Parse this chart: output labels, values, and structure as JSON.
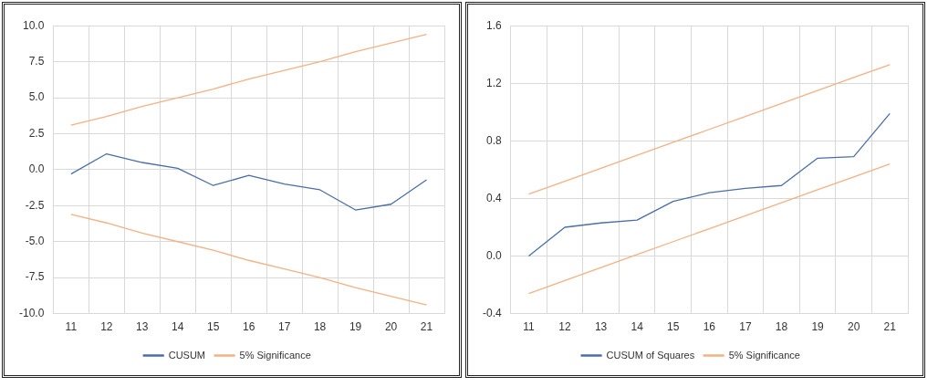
{
  "chart_data": [
    {
      "type": "line",
      "categories": [
        "11",
        "12",
        "13",
        "14",
        "15",
        "16",
        "17",
        "18",
        "19",
        "20",
        "21"
      ],
      "series": [
        {
          "name": "CUSUM",
          "color": "#4a6ea8",
          "values": [
            -0.3,
            1.1,
            0.5,
            0.1,
            -1.1,
            -0.4,
            -1.0,
            -1.4,
            -2.8,
            -2.4,
            -0.7
          ]
        },
        {
          "name": "5% Significance",
          "color": "#f4b183",
          "values": [
            3.1,
            3.7,
            4.4,
            5.0,
            5.6,
            6.3,
            6.9,
            7.5,
            8.2,
            8.8,
            9.4
          ]
        },
        {
          "color": "#f4b183",
          "values": [
            -3.1,
            -3.7,
            -4.4,
            -5.0,
            -5.6,
            -6.3,
            -6.9,
            -7.5,
            -8.2,
            -8.8,
            -9.4
          ]
        }
      ],
      "ylim": [
        -10,
        10
      ],
      "yticks": [
        {
          "value": -10,
          "label": "-10.0"
        },
        {
          "value": -7.5,
          "label": "-7.5"
        },
        {
          "value": -5,
          "label": "-5.0"
        },
        {
          "value": -2.5,
          "label": "-2.5"
        },
        {
          "value": 0,
          "label": "0.0"
        },
        {
          "value": 2.5,
          "label": "2.5"
        },
        {
          "value": 5,
          "label": "5.0"
        },
        {
          "value": 7.5,
          "label": "7.5"
        },
        {
          "value": 10,
          "label": "10.0"
        }
      ],
      "grid": true,
      "legend": "bottom",
      "marker": "none",
      "line_style": "solid"
    },
    {
      "type": "line",
      "categories": [
        "11",
        "12",
        "13",
        "14",
        "15",
        "16",
        "17",
        "18",
        "19",
        "20",
        "21"
      ],
      "series": [
        {
          "name": "CUSUM of Squares",
          "color": "#4a6ea8",
          "values": [
            0,
            0.2,
            0.23,
            0.25,
            0.38,
            0.44,
            0.47,
            0.49,
            0.68,
            0.69,
            0.99
          ]
        },
        {
          "name": "5% Significance",
          "color": "#f4b183",
          "values": [
            0.43,
            0.52,
            0.61,
            0.7,
            0.79,
            0.88,
            0.97,
            1.06,
            1.15,
            1.24,
            1.33
          ]
        },
        {
          "color": "#f4b183",
          "values": [
            -0.26,
            -0.17,
            -0.08,
            0.01,
            0.1,
            0.19,
            0.28,
            0.37,
            0.46,
            0.55,
            0.64
          ]
        }
      ],
      "ylim": [
        -0.4,
        1.6
      ],
      "yticks": [
        {
          "value": -0.4,
          "label": "-0.4"
        },
        {
          "value": 0,
          "label": "0.0"
        },
        {
          "value": 0.4,
          "label": "0.4"
        },
        {
          "value": 0.8,
          "label": "0.8"
        },
        {
          "value": 1.2,
          "label": "1.2"
        },
        {
          "value": 1.6,
          "label": "1.6"
        }
      ],
      "grid": true,
      "legend": "bottom",
      "marker": "none",
      "line_style": "solid"
    }
  ]
}
